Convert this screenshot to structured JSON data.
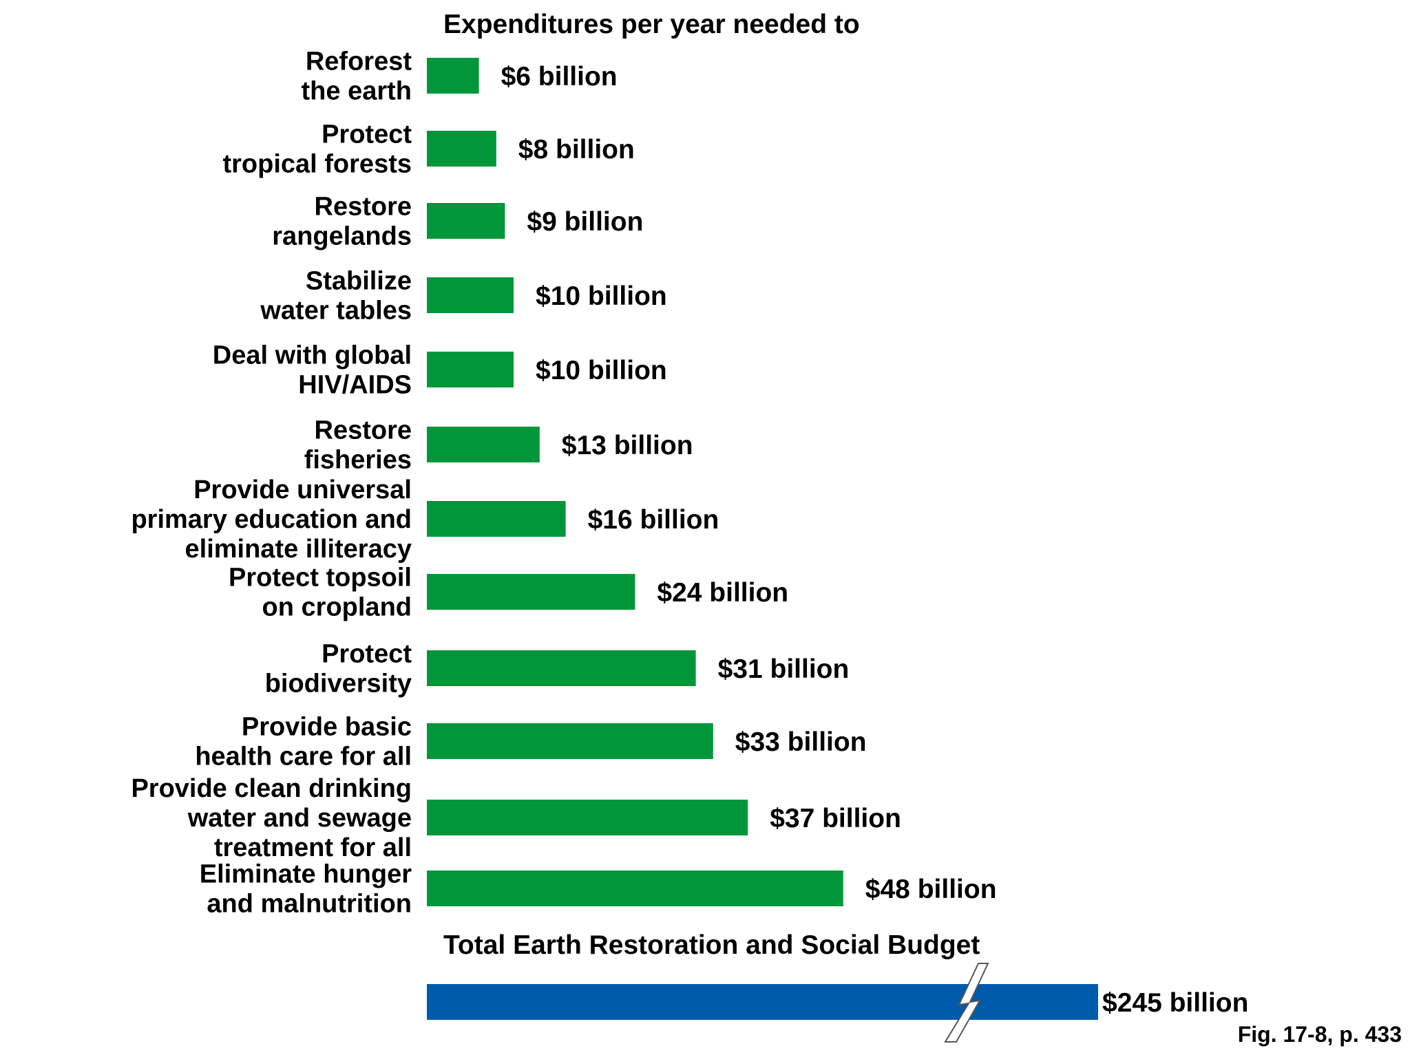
{
  "chart_data": {
    "type": "bar",
    "orientation": "horizontal",
    "title": "Expenditures per year needed to",
    "categories": [
      [
        "Reforest",
        "the earth"
      ],
      [
        "Protect",
        "tropical forests"
      ],
      [
        "Restore",
        "rangelands"
      ],
      [
        "Stabilize",
        "water tables"
      ],
      [
        "Deal with global",
        "HIV/AIDS"
      ],
      [
        "Restore",
        "fisheries"
      ],
      [
        "Provide universal",
        "primary education and",
        "eliminate illiteracy"
      ],
      [
        "Protect topsoil",
        "on cropland"
      ],
      [
        "Protect",
        "biodiversity"
      ],
      [
        "Provide basic",
        "health care for all"
      ],
      [
        "Provide clean drinking",
        "water and sewage",
        "treatment for all"
      ],
      [
        "Eliminate hunger",
        "and malnutrition"
      ]
    ],
    "values": [
      6,
      8,
      9,
      10,
      10,
      13,
      16,
      24,
      31,
      33,
      37,
      48
    ],
    "value_labels": [
      "$6 billion",
      "$8 billion",
      "$9 billion",
      "$10 billion",
      "$10 billion",
      "$13 billion",
      "$16 billion",
      "$24 billion",
      "$31 billion",
      "$33 billion",
      "$37 billion",
      "$48 billion"
    ],
    "bar_color": "#009639",
    "total": {
      "label": "Total Earth Restoration and Social Budget",
      "value": 245,
      "value_label": "$245 billion",
      "color": "#005BAC",
      "axis_break": true
    }
  },
  "caption": "Fig. 17-8, p. 433"
}
